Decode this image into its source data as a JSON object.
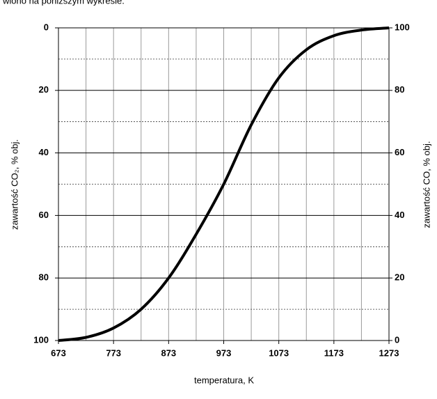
{
  "annotations": [
    "wiono na poniższym wykresie."
  ],
  "chart_data": {
    "type": "line",
    "xlabel": "temperatura, K",
    "ylabel": "zawartość CO₂, % obj.",
    "y2label": "zawartość CO, % obj.",
    "x": [
      673,
      723,
      773,
      823,
      873,
      923,
      973,
      1023,
      1073,
      1123,
      1173,
      1223,
      1273
    ],
    "series": [
      {
        "name": "zawartość CO",
        "color": "#000000",
        "axis": "y2",
        "values": [
          0,
          1,
          4,
          10,
          20,
          34,
          50,
          69,
          84,
          93,
          97.5,
          99.3,
          100
        ]
      }
    ],
    "xlim": [
      673,
      1273
    ],
    "xticks": [
      673,
      773,
      873,
      973,
      1073,
      1173,
      1273
    ],
    "xminor": [
      723,
      823,
      923,
      1023,
      1123,
      1223
    ],
    "ylim": [
      100,
      0
    ],
    "yticks": [
      0,
      20,
      40,
      60,
      80,
      100
    ],
    "y2lim": [
      0,
      100
    ],
    "y2ticks": [
      0,
      20,
      40,
      60,
      80,
      100
    ],
    "yminor": [
      10,
      30,
      50,
      70,
      90
    ],
    "grid": true
  }
}
